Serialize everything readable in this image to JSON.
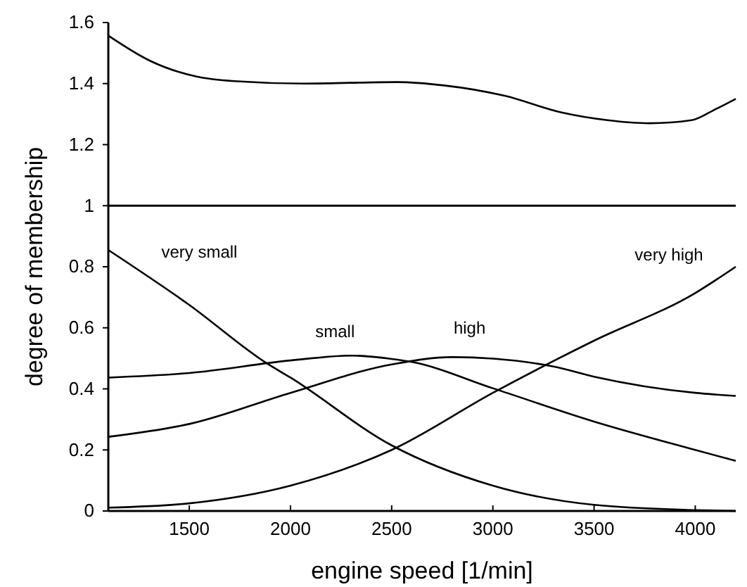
{
  "chart_data": {
    "type": "line",
    "xlabel": "engine speed [1/min]",
    "ylabel": "degree of membership",
    "xlim": [
      1100,
      4200
    ],
    "ylim": [
      0,
      1.6
    ],
    "xticks": [
      1500,
      2000,
      2500,
      3000,
      3500,
      4000
    ],
    "yticks": [
      0,
      0.2,
      0.4,
      0.6,
      0.8,
      1,
      1.2,
      1.4,
      1.6
    ],
    "ref_lines": [
      {
        "axis": "y",
        "value": 1,
        "color": "#000000"
      }
    ],
    "series": [
      {
        "color": "#000000",
        "x": [
          1100,
          1305,
          1536,
          1721,
          2067,
          2527,
          2759,
          3058,
          3335,
          3567,
          3773,
          3982,
          4097,
          4200
        ],
        "values": [
          1.557,
          1.475,
          1.423,
          1.408,
          1.4,
          1.405,
          1.394,
          1.36,
          1.306,
          1.28,
          1.27,
          1.28,
          1.315,
          1.35
        ]
      },
      {
        "name": "very small",
        "color": "#000000",
        "x": [
          1100,
          1500,
          1880,
          2000,
          2500,
          3000,
          3500,
          4000,
          4200
        ],
        "values": [
          0.855,
          0.675,
          0.485,
          0.437,
          0.215,
          0.083,
          0.02,
          0.003,
          0
        ]
      },
      {
        "name": "small",
        "color": "#000000",
        "x": [
          1100,
          1500,
          2000,
          2300,
          2500,
          2600,
          3000,
          3500,
          4000,
          4200
        ],
        "values": [
          0.437,
          0.452,
          0.493,
          0.509,
          0.498,
          0.488,
          0.402,
          0.293,
          0.2,
          0.164
        ]
      },
      {
        "name": "high",
        "color": "#000000",
        "x": [
          1100,
          1500,
          2000,
          2500,
          2800,
          3000,
          3300,
          3500,
          4000,
          4200
        ],
        "values": [
          0.243,
          0.285,
          0.387,
          0.48,
          0.504,
          0.499,
          0.473,
          0.44,
          0.387,
          0.377
        ]
      },
      {
        "name": "very high",
        "color": "#000000",
        "x": [
          1100,
          1500,
          2000,
          2500,
          3000,
          3500,
          4000,
          4200
        ],
        "values": [
          0.011,
          0.025,
          0.083,
          0.2,
          0.387,
          0.558,
          0.714,
          0.8
        ]
      }
    ]
  }
}
